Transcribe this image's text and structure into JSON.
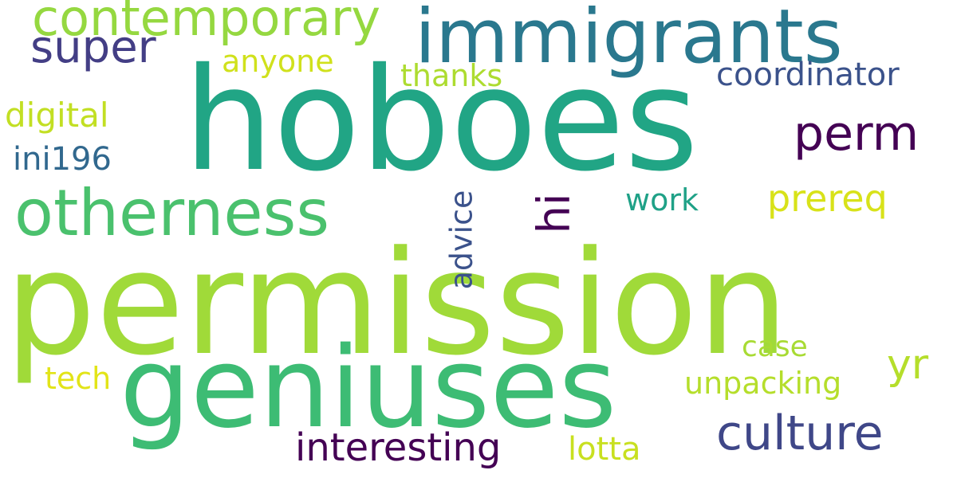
{
  "words": [
    {
      "text": "permission",
      "color": "#a0da39"
    },
    {
      "text": "hoboes",
      "color": "#21a585"
    },
    {
      "text": "geniuses",
      "color": "#3dbc74"
    },
    {
      "text": "immigrants",
      "color": "#2a788e"
    },
    {
      "text": "otherness",
      "color": "#4ac16d"
    },
    {
      "text": "contemporary",
      "color": "#95d840"
    },
    {
      "text": "super",
      "color": "#433e85"
    },
    {
      "text": "culture",
      "color": "#3f4788"
    },
    {
      "text": "perm",
      "color": "#440154"
    },
    {
      "text": "interesting",
      "color": "#440154"
    },
    {
      "text": "hi",
      "color": "#440154"
    },
    {
      "text": "prereq",
      "color": "#d8e219"
    },
    {
      "text": "yr",
      "color": "#b5de2b"
    },
    {
      "text": "advice",
      "color": "#3b528b"
    },
    {
      "text": "coordinator",
      "color": "#3b528b"
    },
    {
      "text": "digital",
      "color": "#c2df23"
    },
    {
      "text": "ini196",
      "color": "#31688e"
    },
    {
      "text": "anyone",
      "color": "#d0e11c"
    },
    {
      "text": "thanks",
      "color": "#addc30"
    },
    {
      "text": "work",
      "color": "#1fa187"
    },
    {
      "text": "case",
      "color": "#a8db34"
    },
    {
      "text": "unpacking",
      "color": "#b5de2b"
    },
    {
      "text": "tech",
      "color": "#e2e418"
    },
    {
      "text": "lotta",
      "color": "#c8e020"
    }
  ]
}
